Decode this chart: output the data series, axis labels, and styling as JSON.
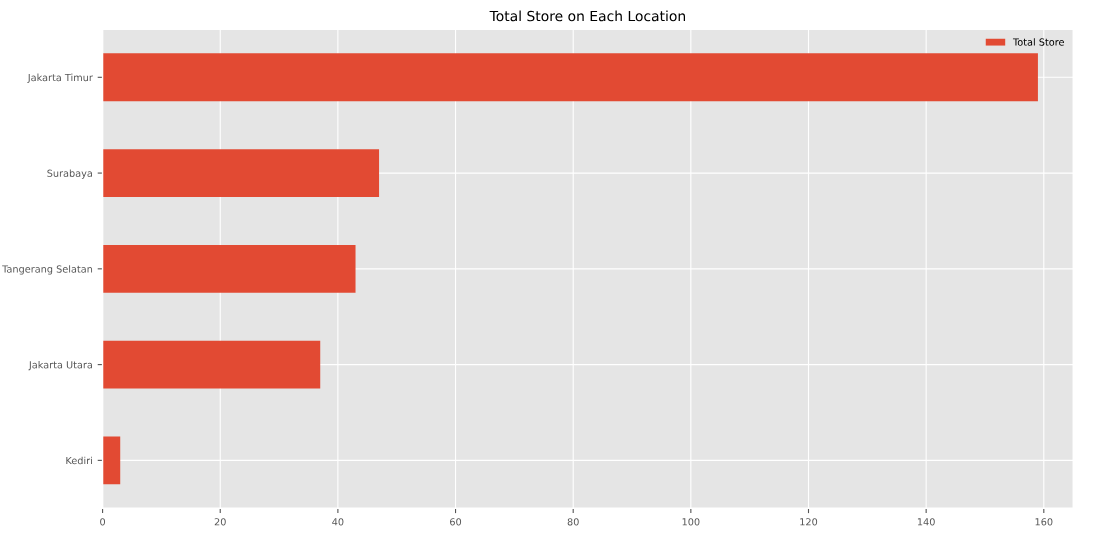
{
  "chart_data": {
    "type": "bar",
    "orientation": "horizontal",
    "title": "Total Store on Each Location",
    "categories": [
      "Jakarta Timur",
      "Surabaya",
      "Tangerang Selatan",
      "Jakarta Utara",
      "Kediri"
    ],
    "series": [
      {
        "name": "Total Store",
        "color": "#e24a33",
        "values": [
          159,
          47,
          43,
          37,
          3
        ]
      }
    ],
    "xlim": [
      0,
      165
    ],
    "xticks": [
      0,
      20,
      40,
      60,
      80,
      100,
      120,
      140,
      160
    ],
    "grid": true,
    "legend": "top right"
  }
}
